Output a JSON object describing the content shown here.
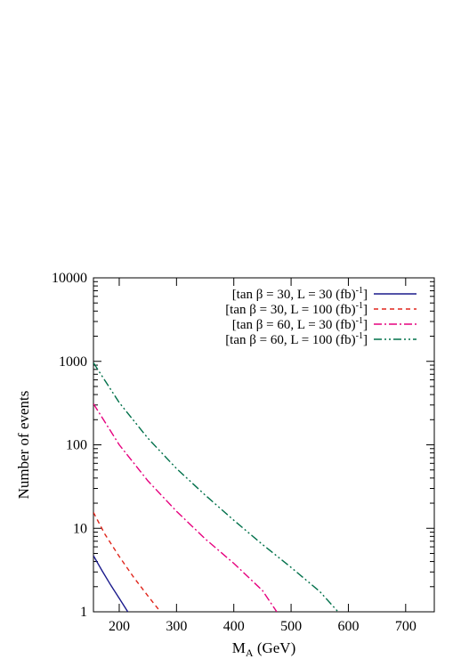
{
  "chart_data": {
    "type": "line",
    "title": "",
    "xlabel_main": "M",
    "xlabel_sub": "A",
    "xlabel_unit": " (GeV)",
    "ylabel": "Number of events",
    "xlim": [
      155,
      750
    ],
    "ylim": [
      1,
      10000
    ],
    "yscale": "log",
    "x_ticks": [
      "200",
      "300",
      "400",
      "500",
      "600",
      "700"
    ],
    "x_tick_values": [
      200,
      300,
      400,
      500,
      600,
      700
    ],
    "y_ticks": [
      "1",
      "10",
      "100",
      "1000",
      "10000"
    ],
    "y_tick_values": [
      1,
      10,
      100,
      1000,
      10000
    ],
    "legend_position": "top-right",
    "series": [
      {
        "name_main": "[tan β = 30, L = 30 (fb)",
        "name_sup": "-1",
        "name_end": "]",
        "color": "#1a1a8c",
        "dash": "",
        "points": [
          [
            155,
            4.7
          ],
          [
            170,
            3.1
          ],
          [
            185,
            2.1
          ],
          [
            200,
            1.45
          ],
          [
            215,
            1.0
          ]
        ]
      },
      {
        "name_main": "[tan β = 30, L = 100 (fb)",
        "name_sup": "-1",
        "name_end": "]",
        "color": "#e0251b",
        "dash": "5,4",
        "points": [
          [
            155,
            15.5
          ],
          [
            175,
            8.5
          ],
          [
            200,
            4.6
          ],
          [
            225,
            2.6
          ],
          [
            250,
            1.55
          ],
          [
            272,
            1.0
          ]
        ]
      },
      {
        "name_main": "[tan β = 60, L = 30 (fb)",
        "name_sup": "-1",
        "name_end": "]",
        "color": "#e6007e",
        "dash": "9,3,2,3",
        "points": [
          [
            155,
            310
          ],
          [
            200,
            100
          ],
          [
            250,
            37
          ],
          [
            300,
            16
          ],
          [
            350,
            7.5
          ],
          [
            400,
            3.8
          ],
          [
            450,
            1.8
          ],
          [
            475,
            1.0
          ]
        ]
      },
      {
        "name_main": "[tan β = 60, L = 100 (fb)",
        "name_sup": "-1",
        "name_end": "]",
        "color": "#00704a",
        "dash": "9,3,2,3,2,3",
        "points": [
          [
            155,
            960
          ],
          [
            200,
            320
          ],
          [
            250,
            120
          ],
          [
            300,
            52
          ],
          [
            350,
            25
          ],
          [
            400,
            12.5
          ],
          [
            450,
            6.4
          ],
          [
            500,
            3.4
          ],
          [
            550,
            1.75
          ],
          [
            582,
            1.0
          ]
        ]
      }
    ]
  }
}
